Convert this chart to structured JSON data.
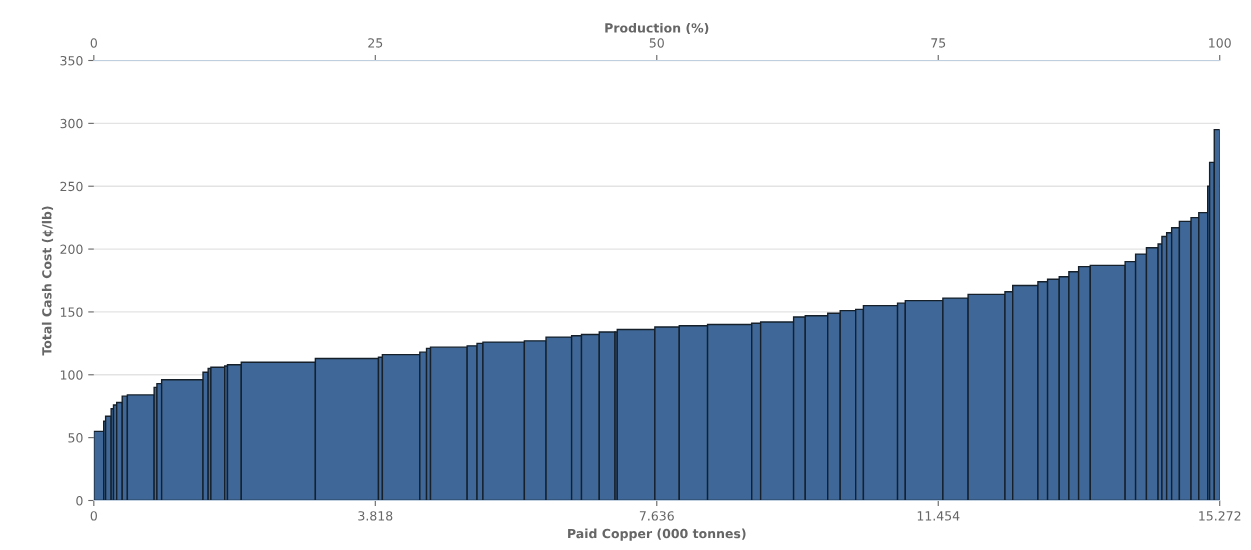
{
  "chart_data": {
    "type": "histogram",
    "xlabel": "Paid Copper (000 tonnes)",
    "ylabel": "Total Cash Cost (¢/lb)",
    "x2label": "Production (%)",
    "bins": [
      0,
      0.134,
      0.16,
      0.235,
      0.267,
      0.31,
      0.385,
      0.455,
      0.818,
      0.856,
      0.92,
      1.481,
      1.551,
      1.588,
      1.775,
      1.813,
      2.0,
      3.005,
      3.861,
      3.914,
      4.422,
      4.513,
      4.567,
      5.064,
      5.198,
      5.278,
      5.84,
      6.134,
      6.481,
      6.615,
      6.856,
      7.07,
      7.1,
      7.61,
      7.941,
      8.325,
      8.924,
      9.045,
      9.492,
      9.65,
      9.955,
      10.124,
      10.334,
      10.439,
      10.902,
      11.007,
      11.517,
      11.859,
      12.359,
      12.464,
      12.806,
      12.937,
      13.095,
      13.226,
      13.358,
      13.516,
      13.989,
      14.131,
      14.278,
      14.436,
      14.488,
      14.552,
      14.62,
      14.725,
      14.883,
      14.988,
      15.109,
      15.135,
      15.198,
      15.272
    ],
    "values": [
      55,
      63,
      67,
      73,
      76,
      78,
      83,
      84,
      90,
      93,
      96,
      102,
      105,
      106,
      107,
      108,
      110,
      113,
      114,
      116,
      118,
      121,
      122,
      123,
      125,
      126,
      127,
      130,
      131,
      132,
      134,
      134,
      136,
      138,
      139,
      140,
      141,
      142,
      146,
      147,
      149,
      151,
      152,
      155,
      157,
      159,
      161,
      164,
      166,
      171,
      174,
      176,
      178,
      182,
      186,
      187,
      190,
      196,
      201,
      204,
      210,
      213,
      217,
      222,
      225,
      229,
      250,
      269,
      295
    ],
    "color": "#3f6899",
    "xlim": [
      0,
      15.272
    ],
    "xticks": [
      0,
      {
        "value": 3.818,
        "label": "3.818"
      },
      {
        "value": 7.636,
        "label": "7.636"
      },
      {
        "value": 11.454,
        "label": "11.454"
      },
      {
        "value": 15.272,
        "label": "15.272"
      }
    ],
    "x2lim": [
      0,
      100
    ],
    "x2ticks": [
      0,
      25,
      50,
      75,
      100
    ],
    "ylim": [
      0,
      350
    ],
    "yticks": [
      0,
      50,
      100,
      150,
      200,
      250,
      300,
      350
    ],
    "grid": "y"
  }
}
